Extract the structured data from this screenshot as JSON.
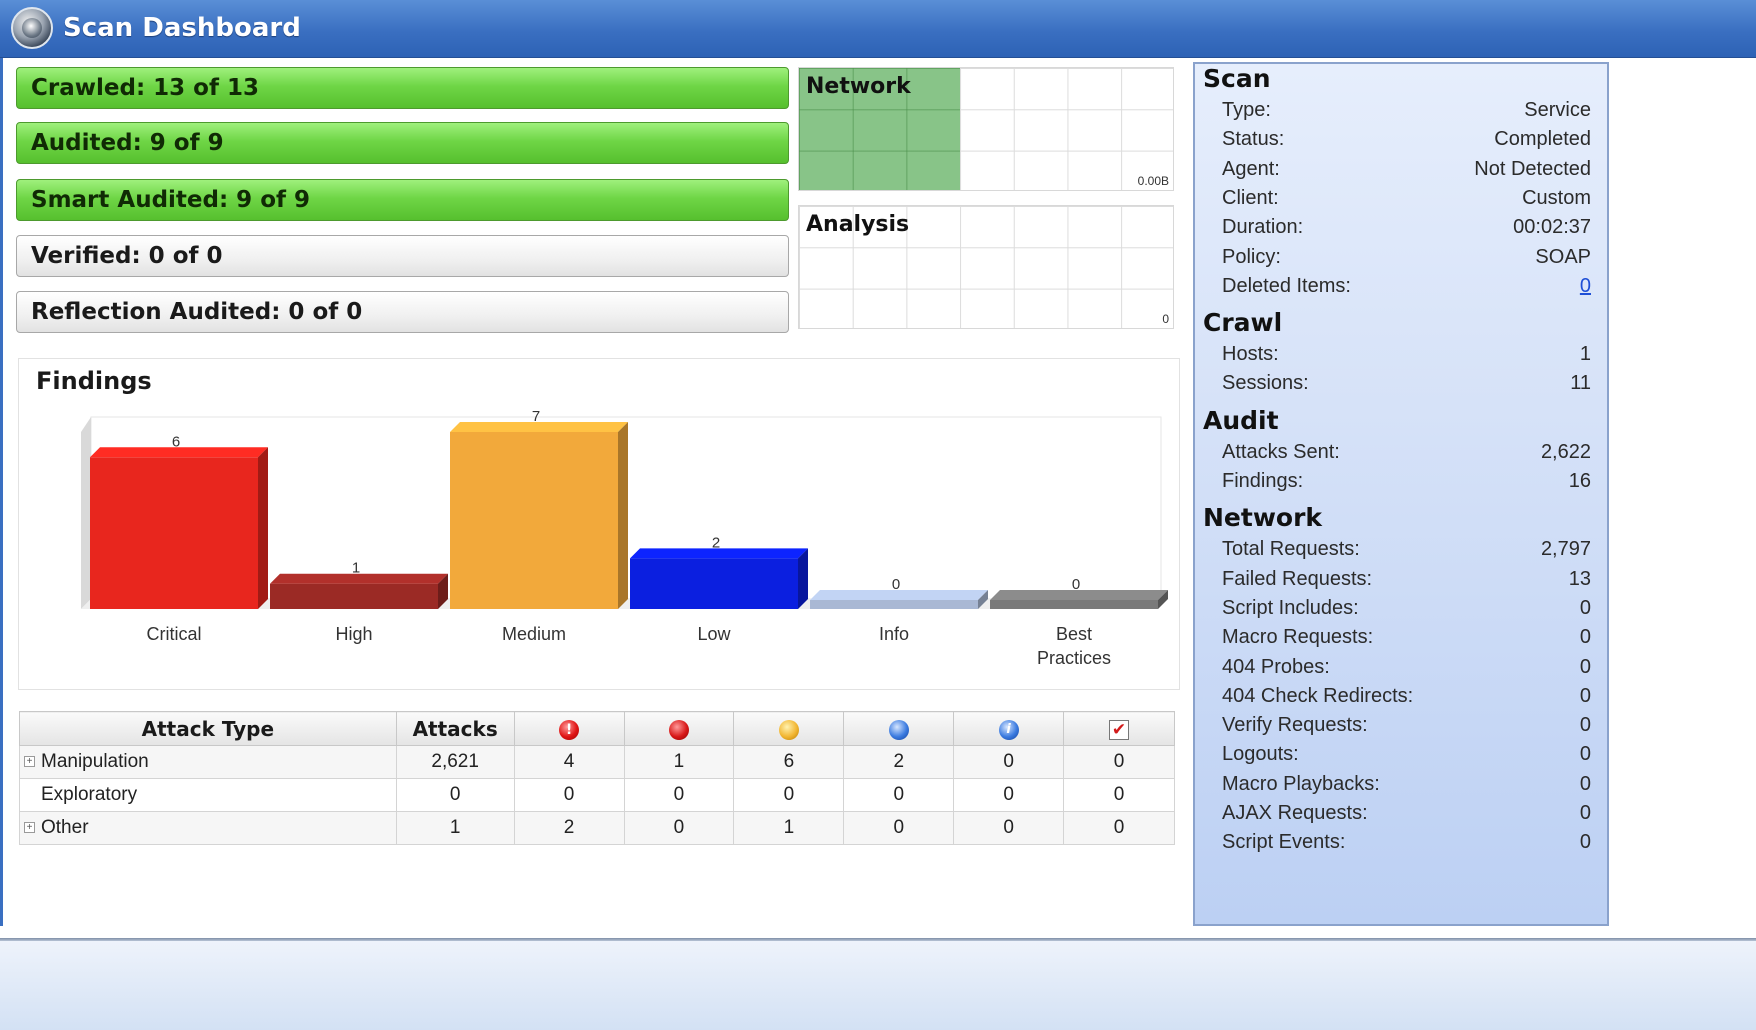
{
  "window": {
    "title": "Scan Dashboard",
    "logo_icon": "scanner-logo-icon"
  },
  "progress": [
    {
      "label": "Crawled: 13 of 13",
      "state": "complete"
    },
    {
      "label": "Audited: 9 of 9",
      "state": "complete"
    },
    {
      "label": "Smart Audited: 9 of 9",
      "state": "complete"
    },
    {
      "label": "Verified: 0 of 0",
      "state": "empty"
    },
    {
      "label": "Reflection Audited: 0 of 0",
      "state": "empty"
    }
  ],
  "mini_charts": [
    {
      "title": "Network",
      "value": "0.00B",
      "fill_fraction": 0.43
    },
    {
      "title": "Analysis",
      "value": "0",
      "fill_fraction": 0
    }
  ],
  "findings": {
    "title": "Findings",
    "chart_data": {
      "type": "bar",
      "categories": [
        "Critical",
        "High",
        "Medium",
        "Low",
        "Info",
        "Best Practices"
      ],
      "values": [
        6,
        1,
        7,
        2,
        0,
        0
      ],
      "colors": [
        "#e8261e",
        "#9b2a25",
        "#f2a93b",
        "#0b1fe0",
        "#a9b8d4",
        "#7a7a7a"
      ],
      "ylim": [
        0,
        7
      ]
    }
  },
  "table": {
    "headers": {
      "attack_type": "Attack Type",
      "attacks": "Attacks"
    },
    "severity_icons": [
      "critical-icon",
      "high-icon",
      "medium-icon",
      "low-icon",
      "info-icon",
      "best-practice-icon"
    ],
    "rows": [
      {
        "name": "Manipulation",
        "expandable": true,
        "attacks": "2,621",
        "counts": [
          "4",
          "1",
          "6",
          "2",
          "0",
          "0"
        ]
      },
      {
        "name": "Exploratory",
        "expandable": false,
        "attacks": "0",
        "counts": [
          "0",
          "0",
          "0",
          "0",
          "0",
          "0"
        ]
      },
      {
        "name": "Other",
        "expandable": true,
        "attacks": "1",
        "counts": [
          "2",
          "0",
          "1",
          "0",
          "0",
          "0"
        ]
      }
    ]
  },
  "stats": {
    "scan": {
      "title": "Scan",
      "rows": [
        {
          "label": "Type:",
          "value": "Service"
        },
        {
          "label": "Status:",
          "value": "Completed"
        },
        {
          "label": "Agent:",
          "value": "Not Detected"
        },
        {
          "label": "Client:",
          "value": "Custom"
        },
        {
          "label": "Duration:",
          "value": "00:02:37"
        },
        {
          "label": "Policy:",
          "value": "SOAP"
        },
        {
          "label": "Deleted Items:",
          "value": "0",
          "link": true
        }
      ]
    },
    "crawl": {
      "title": "Crawl",
      "rows": [
        {
          "label": "Hosts:",
          "value": "1"
        },
        {
          "label": "Sessions:",
          "value": "11"
        }
      ]
    },
    "audit": {
      "title": "Audit",
      "rows": [
        {
          "label": "Attacks Sent:",
          "value": "2,622"
        },
        {
          "label": "Findings:",
          "value": "16"
        }
      ]
    },
    "network": {
      "title": "Network",
      "rows": [
        {
          "label": "Total Requests:",
          "value": "2,797"
        },
        {
          "label": "Failed Requests:",
          "value": "13"
        },
        {
          "label": "Script Includes:",
          "value": "0"
        },
        {
          "label": "Macro Requests:",
          "value": "0"
        },
        {
          "label": "404 Probes:",
          "value": "0"
        },
        {
          "label": "404 Check Redirects:",
          "value": "0"
        },
        {
          "label": "Verify Requests:",
          "value": "0"
        },
        {
          "label": "Logouts:",
          "value": "0"
        },
        {
          "label": "Macro Playbacks:",
          "value": "0"
        },
        {
          "label": "AJAX Requests:",
          "value": "0"
        },
        {
          "label": "Script Events:",
          "value": "0"
        }
      ]
    }
  }
}
